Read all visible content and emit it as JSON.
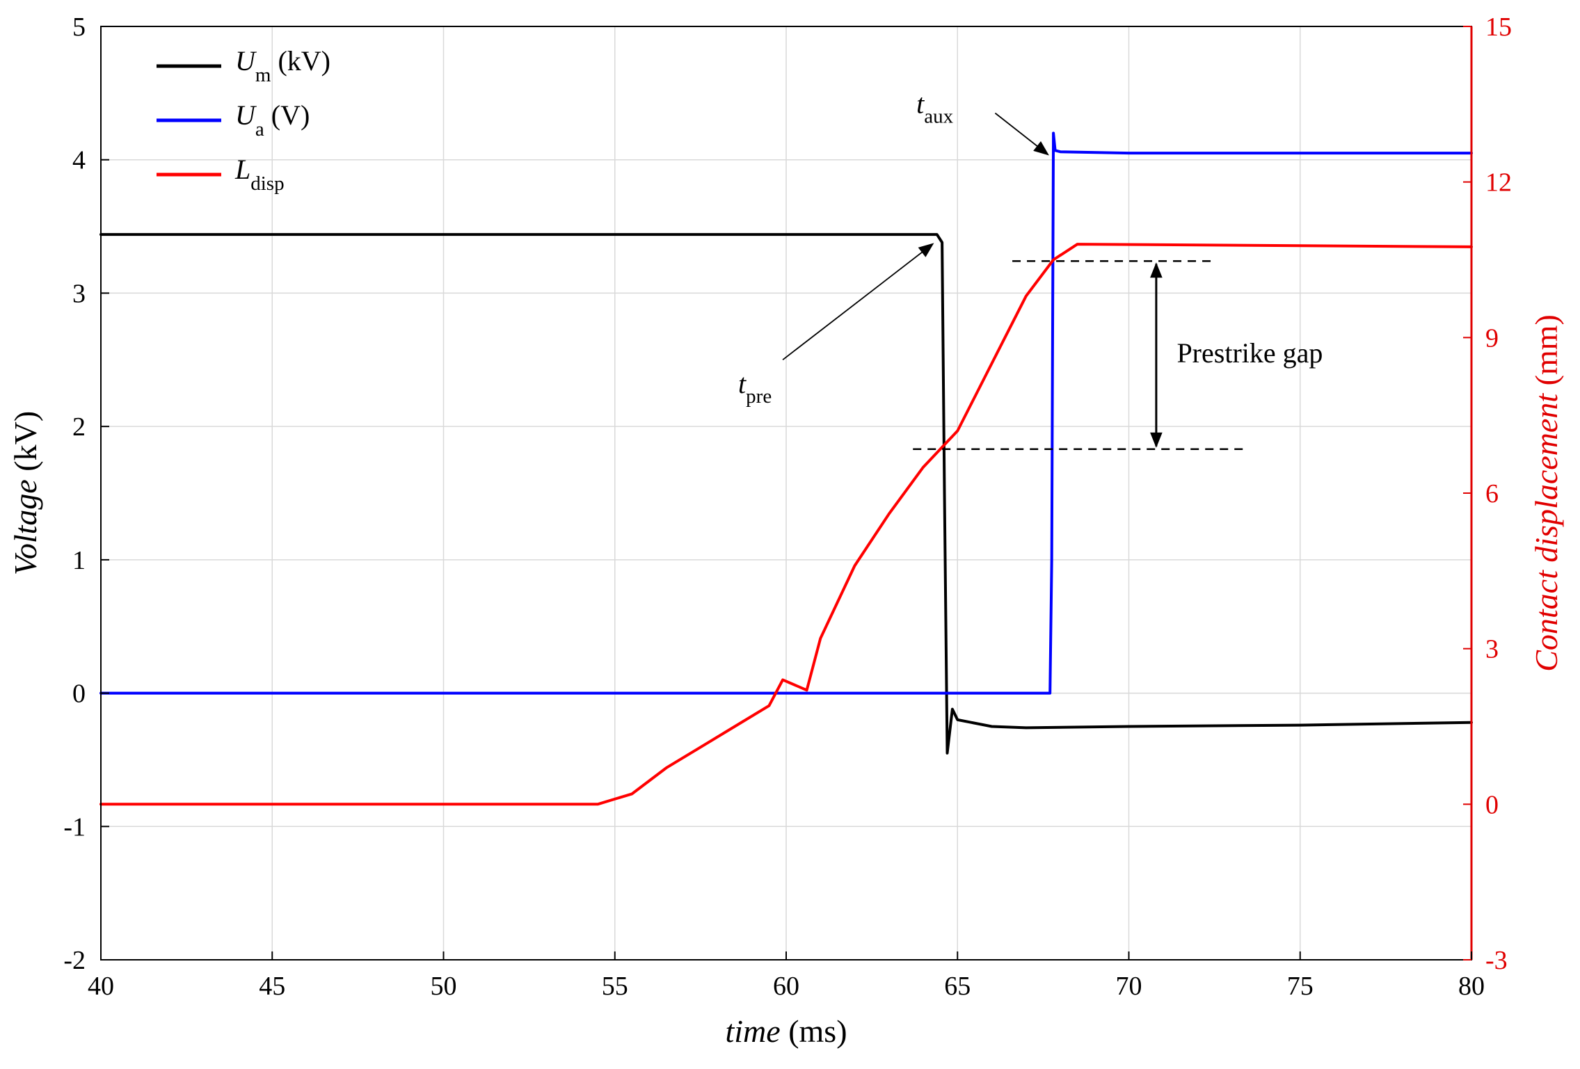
{
  "chart_data": {
    "type": "line",
    "xlabel": {
      "italic": "time",
      "unit": "(ms)"
    },
    "ylabel_left": {
      "italic": "Voltage",
      "unit": "(kV)"
    },
    "ylabel_right": {
      "italic": "Contact displacement",
      "unit": "(mm)"
    },
    "xlim": [
      40,
      80
    ],
    "ylim_left": [
      -2,
      5
    ],
    "ylim_right": [
      -3,
      15
    ],
    "xticks": [
      "40",
      "45",
      "50",
      "55",
      "60",
      "65",
      "70",
      "75",
      "80"
    ],
    "yticks_left": [
      "-2",
      "-1",
      "0",
      "1",
      "2",
      "3",
      "4",
      "5"
    ],
    "yticks_right": [
      "-3",
      "0",
      "3",
      "6",
      "9",
      "12",
      "15"
    ],
    "grid": true,
    "legend_position": "top-left",
    "colors": {
      "Um": "#000000",
      "Ua": "#0000ff",
      "Ldisp": "#ff0000",
      "right_axis": "#e00000"
    },
    "legend": [
      {
        "key": "Um",
        "sym": "U",
        "sub": "m",
        "unit": "(kV)"
      },
      {
        "key": "Ua",
        "sym": "U",
        "sub": "a",
        "unit": "(V)"
      },
      {
        "key": "Ldisp",
        "sym": "L",
        "sub": "disp",
        "unit": ""
      }
    ],
    "series": [
      {
        "name": "Um (kV)",
        "axis": "left",
        "x": [
          40,
          64.4,
          64.55,
          64.62,
          64.7,
          64.85,
          65,
          66,
          67,
          70,
          75,
          80
        ],
        "y": [
          3.44,
          3.44,
          3.38,
          1.5,
          -0.45,
          -0.12,
          -0.2,
          -0.25,
          -0.26,
          -0.25,
          -0.24,
          -0.22
        ]
      },
      {
        "name": "Ua (V)",
        "axis": "left",
        "x": [
          40,
          67.7,
          67.75,
          67.8,
          67.85,
          68,
          70,
          80
        ],
        "y": [
          0,
          0,
          1.0,
          4.2,
          4.07,
          4.06,
          4.05,
          4.05
        ]
      },
      {
        "name": "Ldisp (mm)",
        "axis": "right",
        "x": [
          40,
          54.5,
          55.5,
          56.5,
          57.5,
          58.5,
          59.5,
          59.9,
          60.6,
          61,
          62,
          63,
          64,
          65,
          66,
          67,
          67.8,
          68.5,
          80
        ],
        "y": [
          0,
          0,
          0.2,
          0.7,
          1.1,
          1.5,
          1.9,
          2.4,
          2.2,
          3.2,
          4.6,
          5.6,
          6.5,
          7.2,
          8.5,
          9.8,
          10.5,
          10.8,
          10.75
        ]
      }
    ],
    "annotations": {
      "t_pre": {
        "sym": "t",
        "sub": "pre",
        "x": 64.4,
        "y": 3.4
      },
      "t_aux": {
        "sym": "t",
        "sub": "aux",
        "x": 67.8,
        "y": 4.05
      },
      "prestrike_gap": {
        "label": "Prestrike gap",
        "lower_kV": 1.83,
        "upper_kV": 3.24,
        "arrow_x": 70.8
      }
    }
  }
}
